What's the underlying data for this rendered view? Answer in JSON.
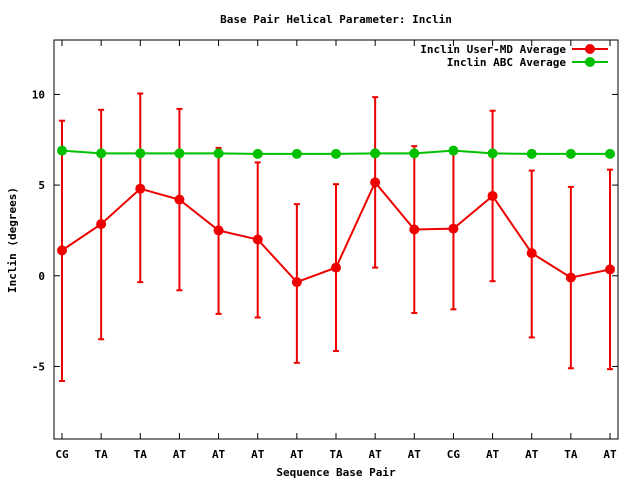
{
  "chart_data": {
    "type": "line",
    "title": "Base Pair Helical Parameter: Inclin",
    "xlabel": "Sequence Base Pair",
    "ylabel": "Inclin (degrees)",
    "ylim": [
      -9,
      13
    ],
    "yticks": [
      "-5",
      "0",
      "5",
      "10"
    ],
    "ytick_values": [
      -5,
      0,
      5,
      10
    ],
    "categories": [
      "CG",
      "TA",
      "TA",
      "AT",
      "AT",
      "AT",
      "AT",
      "TA",
      "AT",
      "AT",
      "CG",
      "AT",
      "AT",
      "TA",
      "AT"
    ],
    "legend_position": "top-right",
    "grid": false,
    "series": [
      {
        "name": "Inclin User-MD Average",
        "color": "#ee0000",
        "values": [
          1.4,
          2.85,
          4.8,
          4.2,
          2.5,
          2.0,
          -0.35,
          0.45,
          5.15,
          2.55,
          2.6,
          4.4,
          1.25,
          -0.1,
          0.35
        ],
        "err_low": [
          -5.8,
          -3.5,
          -0.35,
          -0.8,
          -2.1,
          -2.3,
          -4.8,
          -4.15,
          0.45,
          -2.05,
          -1.85,
          -0.3,
          -3.4,
          -5.1,
          -5.15
        ],
        "err_high": [
          8.55,
          9.15,
          10.05,
          9.2,
          7.05,
          6.25,
          3.95,
          5.05,
          9.85,
          7.15,
          7.05,
          9.1,
          5.8,
          4.9,
          5.85
        ]
      },
      {
        "name": "Inclin ABC Average",
        "color": "#00c000",
        "values": [
          6.9,
          6.75,
          6.75,
          6.75,
          6.75,
          6.72,
          6.72,
          6.72,
          6.75,
          6.75,
          6.9,
          6.75,
          6.72,
          6.72,
          6.72
        ]
      }
    ]
  }
}
